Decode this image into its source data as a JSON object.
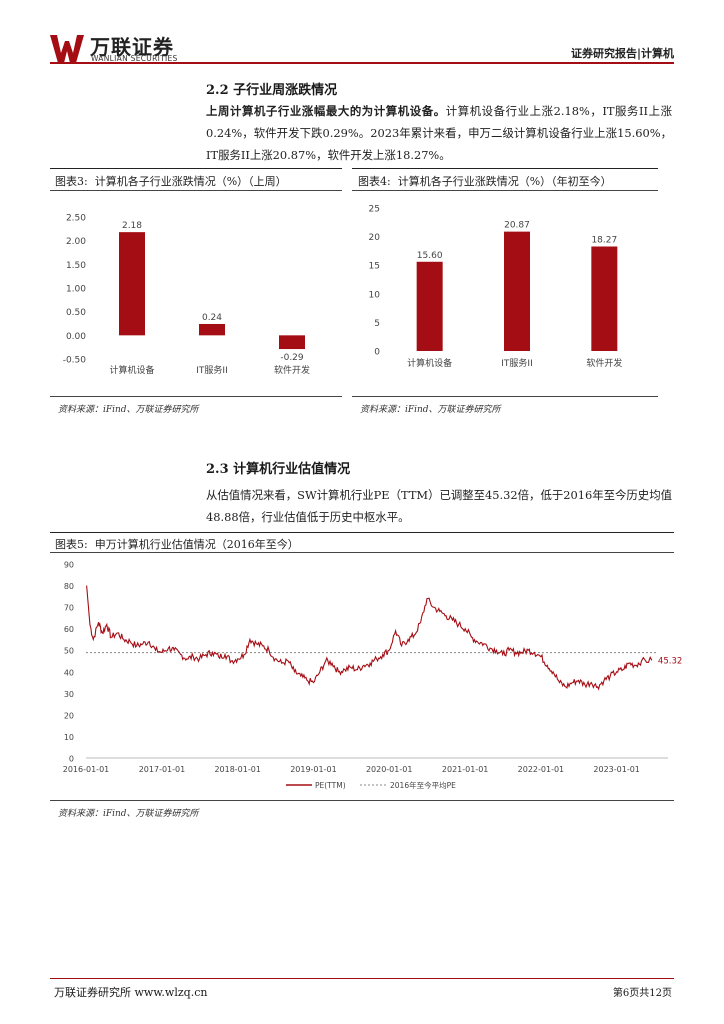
{
  "header": {
    "logo_cn": "万联证券",
    "logo_en": "WANLIAN SECURITIES",
    "right": "证券研究报告|计算机"
  },
  "section22": {
    "title": "2.2  子行业周涨跌情况",
    "para_bold": "上周计算机子行业涨幅最大的为计算机设备。",
    "para_rest": "计算机设备行业上涨2.18%，IT服务II上涨0.24%，软件开发下跌0.29%。2023年累计来看，申万二级计算机设备行业上涨15.60%，IT服务II上涨20.87%，软件开发上涨18.27%。"
  },
  "fig3": {
    "label": "图表3:",
    "title": "计算机各子行业涨跌情况（%）（上周）",
    "source": "资料来源：iFind、万联证券研究所"
  },
  "fig4": {
    "label": "图表4:",
    "title": "计算机各子行业涨跌情况（%）（年初至今）",
    "source": "资料来源：iFind、万联证券研究所"
  },
  "section23": {
    "title": "2.3  计算机行业估值情况",
    "para": "从估值情况来看，SW计算机行业PE（TTM）已调整至45.32倍，低于2016年至今历史均值48.88倍，行业估值低于历史中枢水平。"
  },
  "fig5": {
    "label": "图表5:",
    "title": "申万计算机行业估值情况（2016年至今）",
    "source": "资料来源：iFind、万联证券研究所",
    "end_label": "45.32"
  },
  "footer": {
    "left": "万联证券研究所 www.wlzq.cn",
    "right": "第6页共12页"
  },
  "colors": {
    "accent": "#a50d14",
    "bar": "#a50d14"
  },
  "chart_data": [
    {
      "type": "bar",
      "categories": [
        "计算机设备",
        "IT服务II",
        "软件开发"
      ],
      "values": [
        2.18,
        0.24,
        -0.29
      ],
      "value_labels": [
        "2.18",
        "0.24",
        "-0.29"
      ],
      "yticks": [
        "2.50",
        "2.00",
        "1.50",
        "1.00",
        "0.50",
        "0.00",
        "-0.50"
      ],
      "ylim": [
        -0.5,
        2.5
      ]
    },
    {
      "type": "bar",
      "categories": [
        "计算机设备",
        "IT服务II",
        "软件开发"
      ],
      "values": [
        15.6,
        20.87,
        18.27
      ],
      "value_labels": [
        "15.60",
        "20.87",
        "18.27"
      ],
      "yticks": [
        "25",
        "20",
        "15",
        "10",
        "5",
        "0"
      ],
      "ylim": [
        0,
        25
      ]
    },
    {
      "type": "line",
      "xticks": [
        "2016-01-01",
        "2017-01-01",
        "2018-01-01",
        "2019-01-01",
        "2020-01-01",
        "2021-01-01",
        "2022-01-01",
        "2023-01-01"
      ],
      "yticks": [
        "90",
        "80",
        "70",
        "60",
        "50",
        "40",
        "30",
        "20",
        "10",
        "0"
      ],
      "ylim": [
        0,
        90
      ],
      "xlim": [
        "2016-01-01",
        "2023-06-30"
      ],
      "series": [
        {
          "name": "PE(TTM)",
          "style": "solid",
          "points": [
            [
              "2016-01-04",
              80
            ],
            [
              "2016-01-20",
              62
            ],
            [
              "2016-02-05",
              55
            ],
            [
              "2016-03-01",
              63
            ],
            [
              "2016-03-20",
              58
            ],
            [
              "2016-04-10",
              62
            ],
            [
              "2016-05-01",
              56
            ],
            [
              "2016-06-01",
              58
            ],
            [
              "2016-07-01",
              55
            ],
            [
              "2016-08-01",
              54
            ],
            [
              "2016-09-01",
              52
            ],
            [
              "2016-10-01",
              53
            ],
            [
              "2016-11-01",
              54
            ],
            [
              "2016-12-01",
              50
            ],
            [
              "2017-01-01",
              49
            ],
            [
              "2017-02-01",
              51
            ],
            [
              "2017-03-01",
              50
            ],
            [
              "2017-04-01",
              48
            ],
            [
              "2017-05-01",
              46
            ],
            [
              "2017-06-01",
              47
            ],
            [
              "2017-07-01",
              46
            ],
            [
              "2017-08-01",
              48
            ],
            [
              "2017-09-01",
              49
            ],
            [
              "2017-10-01",
              47
            ],
            [
              "2017-11-01",
              48
            ],
            [
              "2017-12-01",
              45
            ],
            [
              "2018-01-01",
              46
            ],
            [
              "2018-02-01",
              48
            ],
            [
              "2018-03-01",
              55
            ],
            [
              "2018-04-01",
              53
            ],
            [
              "2018-05-01",
              52
            ],
            [
              "2018-06-01",
              50
            ],
            [
              "2018-07-01",
              46
            ],
            [
              "2018-08-01",
              44
            ],
            [
              "2018-09-01",
              45
            ],
            [
              "2018-10-01",
              40
            ],
            [
              "2018-11-01",
              38
            ],
            [
              "2018-12-01",
              36
            ],
            [
              "2019-01-01",
              35
            ],
            [
              "2019-02-01",
              40
            ],
            [
              "2019-03-01",
              45
            ],
            [
              "2019-04-01",
              44
            ],
            [
              "2019-05-01",
              40
            ],
            [
              "2019-06-01",
              41
            ],
            [
              "2019-07-01",
              42
            ],
            [
              "2019-08-01",
              41
            ],
            [
              "2019-09-01",
              43
            ],
            [
              "2019-10-01",
              44
            ],
            [
              "2019-11-01",
              46
            ],
            [
              "2019-12-01",
              48
            ],
            [
              "2020-01-01",
              50
            ],
            [
              "2020-02-01",
              59
            ],
            [
              "2020-03-01",
              52
            ],
            [
              "2020-04-01",
              55
            ],
            [
              "2020-05-01",
              57
            ],
            [
              "2020-06-01",
              63
            ],
            [
              "2020-07-01",
              74
            ],
            [
              "2020-08-01",
              70
            ],
            [
              "2020-09-01",
              68
            ],
            [
              "2020-10-01",
              66
            ],
            [
              "2020-11-01",
              64
            ],
            [
              "2020-12-01",
              62
            ],
            [
              "2021-01-01",
              60
            ],
            [
              "2021-02-01",
              56
            ],
            [
              "2021-03-01",
              54
            ],
            [
              "2021-04-01",
              53
            ],
            [
              "2021-05-01",
              51
            ],
            [
              "2021-06-01",
              50
            ],
            [
              "2021-07-01",
              48
            ],
            [
              "2021-08-01",
              50
            ],
            [
              "2021-09-01",
              49
            ],
            [
              "2021-10-01",
              49
            ],
            [
              "2021-11-01",
              50
            ],
            [
              "2021-12-01",
              49
            ],
            [
              "2022-01-01",
              47
            ],
            [
              "2022-02-01",
              43
            ],
            [
              "2022-03-01",
              40
            ],
            [
              "2022-04-01",
              35
            ],
            [
              "2022-05-01",
              33
            ],
            [
              "2022-06-01",
              35
            ],
            [
              "2022-07-01",
              36
            ],
            [
              "2022-08-01",
              34
            ],
            [
              "2022-09-01",
              35
            ],
            [
              "2022-10-01",
              33
            ],
            [
              "2022-11-01",
              36
            ],
            [
              "2022-12-01",
              38
            ],
            [
              "2023-01-01",
              40
            ],
            [
              "2023-02-01",
              41
            ],
            [
              "2023-03-01",
              44
            ],
            [
              "2023-04-01",
              43
            ],
            [
              "2023-05-01",
              45
            ],
            [
              "2023-06-20",
              45.32
            ]
          ]
        },
        {
          "name": "2016年至今平均PE",
          "style": "dashed",
          "value": 48.88
        }
      ]
    }
  ]
}
